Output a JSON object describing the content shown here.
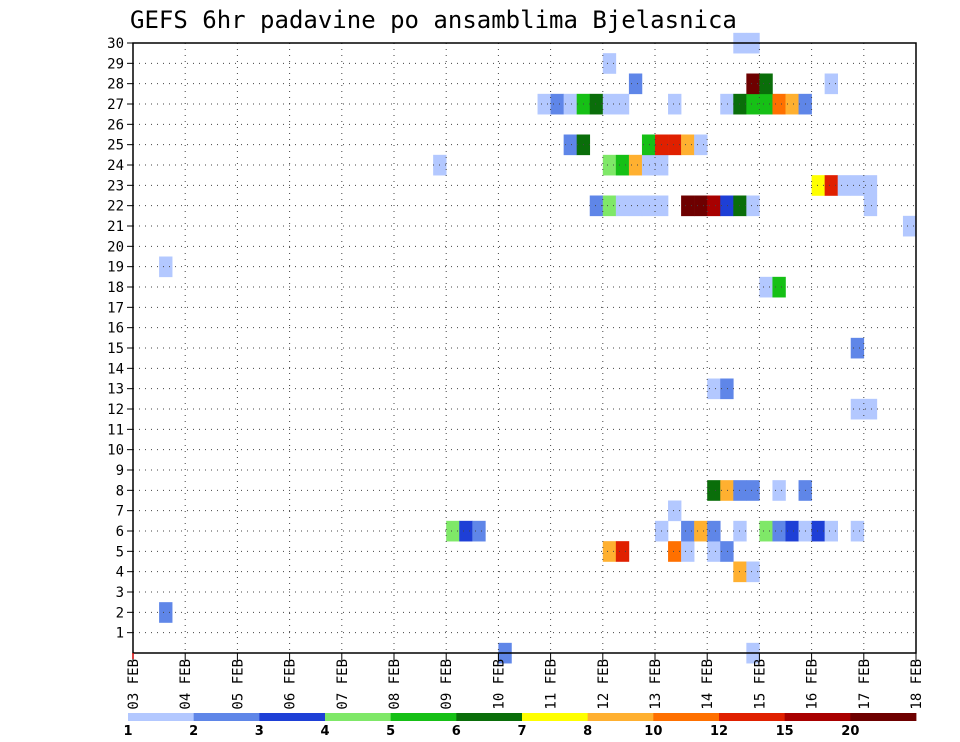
{
  "chart_data": {
    "type": "heatmap",
    "title": "GEFS 6hr padavine po ansamblima Bjelasnica",
    "xlabel": "",
    "ylabel": "",
    "x_tick_labels": [
      "03 FEB",
      "04 FEB",
      "05 FEB",
      "06 FEB",
      "07 FEB",
      "08 FEB",
      "09 FEB",
      "10 FEB",
      "11 FEB",
      "12 FEB",
      "13 FEB",
      "14 FEB",
      "15 FEB",
      "16 FEB",
      "17 FEB",
      "18 FEB"
    ],
    "y_tick_labels": [
      "1",
      "2",
      "3",
      "4",
      "5",
      "6",
      "7",
      "8",
      "9",
      "10",
      "11",
      "12",
      "13",
      "14",
      "15",
      "16",
      "17",
      "18",
      "19",
      "20",
      "21",
      "22",
      "23",
      "24",
      "25",
      "26",
      "27",
      "28",
      "29",
      "30"
    ],
    "xlim": [
      0,
      60
    ],
    "ylim": [
      0,
      30
    ],
    "x_unit": "6-hour steps from 03 FEB 00Z",
    "grid": true,
    "legend": {
      "placement": "bottom",
      "boundaries": [
        "1",
        "2",
        "3",
        "4",
        "5",
        "6",
        "7",
        "8",
        "10",
        "12",
        "15",
        "20"
      ],
      "colors": [
        "#b3c8ff",
        "#5f86e8",
        "#1e3fd6",
        "#7fe868",
        "#16c016",
        "#0a6e0a",
        "#ffff00",
        "#ffb030",
        "#ff7000",
        "#e02000",
        "#a80000",
        "#6e0000"
      ]
    },
    "cells": [
      {
        "member": 0,
        "step": 28,
        "level": 2
      },
      {
        "member": 0,
        "step": 47,
        "level": 1
      },
      {
        "member": 2,
        "step": 2,
        "level": 2
      },
      {
        "member": 4,
        "step": 46,
        "level": 8
      },
      {
        "member": 4,
        "step": 47,
        "level": 1
      },
      {
        "member": 5,
        "step": 36,
        "level": 8
      },
      {
        "member": 5,
        "step": 37,
        "level": 10
      },
      {
        "member": 5,
        "step": 41,
        "level": 9
      },
      {
        "member": 5,
        "step": 42,
        "level": 1
      },
      {
        "member": 5,
        "step": 44,
        "level": 1
      },
      {
        "member": 5,
        "step": 45,
        "level": 2
      },
      {
        "member": 6,
        "step": 24,
        "level": 4
      },
      {
        "member": 6,
        "step": 25,
        "level": 3
      },
      {
        "member": 6,
        "step": 26,
        "level": 2
      },
      {
        "member": 6,
        "step": 40,
        "level": 1
      },
      {
        "member": 6,
        "step": 42,
        "level": 2
      },
      {
        "member": 6,
        "step": 43,
        "level": 8
      },
      {
        "member": 6,
        "step": 44,
        "level": 2
      },
      {
        "member": 6,
        "step": 46,
        "level": 1
      },
      {
        "member": 6,
        "step": 48,
        "level": 4
      },
      {
        "member": 6,
        "step": 49,
        "level": 2
      },
      {
        "member": 6,
        "step": 50,
        "level": 3
      },
      {
        "member": 6,
        "step": 51,
        "level": 1
      },
      {
        "member": 6,
        "step": 52,
        "level": 3
      },
      {
        "member": 6,
        "step": 53,
        "level": 1
      },
      {
        "member": 6,
        "step": 55,
        "level": 1
      },
      {
        "member": 7,
        "step": 41,
        "level": 1
      },
      {
        "member": 8,
        "step": 44,
        "level": 6
      },
      {
        "member": 8,
        "step": 45,
        "level": 8
      },
      {
        "member": 8,
        "step": 46,
        "level": 2
      },
      {
        "member": 8,
        "step": 47,
        "level": 2
      },
      {
        "member": 8,
        "step": 49,
        "level": 1
      },
      {
        "member": 8,
        "step": 51,
        "level": 2
      },
      {
        "member": 12,
        "step": 55,
        "level": 1
      },
      {
        "member": 12,
        "step": 56,
        "level": 1
      },
      {
        "member": 13,
        "step": 44,
        "level": 1
      },
      {
        "member": 13,
        "step": 45,
        "level": 2
      },
      {
        "member": 15,
        "step": 55,
        "level": 2
      },
      {
        "member": 18,
        "step": 48,
        "level": 1
      },
      {
        "member": 18,
        "step": 49,
        "level": 5
      },
      {
        "member": 19,
        "step": 2,
        "level": 1
      },
      {
        "member": 21,
        "step": 59,
        "level": 1
      },
      {
        "member": 22,
        "step": 56,
        "level": 1
      },
      {
        "member": 22,
        "step": 35,
        "level": 2
      },
      {
        "member": 22,
        "step": 36,
        "level": 4
      },
      {
        "member": 22,
        "step": 37,
        "level": 1
      },
      {
        "member": 22,
        "step": 38,
        "level": 1
      },
      {
        "member": 22,
        "step": 39,
        "level": 1
      },
      {
        "member": 22,
        "step": 40,
        "level": 1
      },
      {
        "member": 22,
        "step": 42,
        "level": 12
      },
      {
        "member": 22,
        "step": 43,
        "level": 12
      },
      {
        "member": 22,
        "step": 44,
        "level": 11
      },
      {
        "member": 22,
        "step": 45,
        "level": 3
      },
      {
        "member": 22,
        "step": 46,
        "level": 6
      },
      {
        "member": 22,
        "step": 47,
        "level": 1
      },
      {
        "member": 23,
        "step": 52,
        "level": 7
      },
      {
        "member": 23,
        "step": 53,
        "level": 10
      },
      {
        "member": 23,
        "step": 54,
        "level": 1
      },
      {
        "member": 23,
        "step": 55,
        "level": 1
      },
      {
        "member": 23,
        "step": 56,
        "level": 1
      },
      {
        "member": 24,
        "step": 23,
        "level": 1
      },
      {
        "member": 24,
        "step": 36,
        "level": 4
      },
      {
        "member": 24,
        "step": 37,
        "level": 5
      },
      {
        "member": 24,
        "step": 38,
        "level": 8
      },
      {
        "member": 24,
        "step": 39,
        "level": 1
      },
      {
        "member": 24,
        "step": 40,
        "level": 1
      },
      {
        "member": 25,
        "step": 33,
        "level": 2
      },
      {
        "member": 25,
        "step": 34,
        "level": 6
      },
      {
        "member": 25,
        "step": 39,
        "level": 5
      },
      {
        "member": 25,
        "step": 40,
        "level": 10
      },
      {
        "member": 25,
        "step": 41,
        "level": 10
      },
      {
        "member": 25,
        "step": 42,
        "level": 8
      },
      {
        "member": 25,
        "step": 43,
        "level": 1
      },
      {
        "member": 27,
        "step": 31,
        "level": 1
      },
      {
        "member": 27,
        "step": 32,
        "level": 2
      },
      {
        "member": 27,
        "step": 33,
        "level": 1
      },
      {
        "member": 27,
        "step": 34,
        "level": 5
      },
      {
        "member": 27,
        "step": 35,
        "level": 6
      },
      {
        "member": 27,
        "step": 36,
        "level": 1
      },
      {
        "member": 27,
        "step": 37,
        "level": 1
      },
      {
        "member": 27,
        "step": 41,
        "level": 1
      },
      {
        "member": 27,
        "step": 45,
        "level": 1
      },
      {
        "member": 27,
        "step": 46,
        "level": 6
      },
      {
        "member": 27,
        "step": 47,
        "level": 5
      },
      {
        "member": 27,
        "step": 48,
        "level": 5
      },
      {
        "member": 27,
        "step": 49,
        "level": 9
      },
      {
        "member": 27,
        "step": 50,
        "level": 8
      },
      {
        "member": 27,
        "step": 51,
        "level": 2
      },
      {
        "member": 28,
        "step": 38,
        "level": 2
      },
      {
        "member": 28,
        "step": 47,
        "level": 12
      },
      {
        "member": 28,
        "step": 48,
        "level": 6
      },
      {
        "member": 28,
        "step": 53,
        "level": 1
      },
      {
        "member": 29,
        "step": 36,
        "level": 1
      },
      {
        "member": 30,
        "step": 46,
        "level": 1
      },
      {
        "member": 30,
        "step": 47,
        "level": 1
      }
    ]
  }
}
